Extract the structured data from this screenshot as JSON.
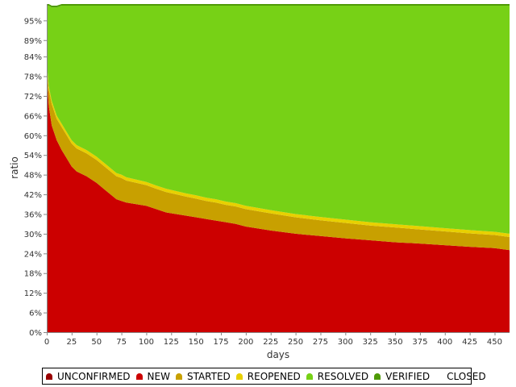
{
  "chart_data": {
    "type": "area",
    "xlabel": "days",
    "ylabel": "ratio",
    "xlim": [
      0,
      465
    ],
    "ylim": [
      0,
      1
    ],
    "x_ticks": [
      0,
      25,
      50,
      75,
      100,
      125,
      150,
      175,
      200,
      225,
      250,
      275,
      300,
      325,
      350,
      375,
      400,
      425,
      450
    ],
    "y_ticks": [
      "0%",
      "6%",
      "12%",
      "18%",
      "24%",
      "30%",
      "36%",
      "42%",
      "48%",
      "54%",
      "60%",
      "66%",
      "72%",
      "78%",
      "84%",
      "89%",
      "95%"
    ],
    "grid": false,
    "legend_position": "bottom",
    "x": [
      0,
      2,
      5,
      10,
      15,
      20,
      25,
      30,
      40,
      50,
      60,
      70,
      75,
      80,
      90,
      100,
      110,
      120,
      130,
      140,
      150,
      160,
      170,
      180,
      190,
      200,
      225,
      250,
      275,
      300,
      325,
      350,
      375,
      400,
      425,
      450,
      465
    ],
    "series": [
      {
        "name": "UNCONFIRMED",
        "color": "#990000",
        "values": [
          0,
          0,
          0,
          0,
          0,
          0,
          0,
          0,
          0,
          0,
          0,
          0,
          0,
          0,
          0,
          0,
          0,
          0,
          0,
          0,
          0,
          0,
          0,
          0,
          0,
          0,
          0,
          0,
          0,
          0,
          0,
          0,
          0,
          0,
          0,
          0,
          0
        ]
      },
      {
        "name": "NEW",
        "color": "#cc0000",
        "values": [
          0.79,
          0.69,
          0.63,
          0.585,
          0.555,
          0.53,
          0.505,
          0.49,
          0.475,
          0.455,
          0.43,
          0.405,
          0.4,
          0.395,
          0.39,
          0.385,
          0.375,
          0.365,
          0.36,
          0.355,
          0.35,
          0.345,
          0.34,
          0.335,
          0.33,
          0.322,
          0.31,
          0.3,
          0.293,
          0.286,
          0.28,
          0.274,
          0.27,
          0.265,
          0.26,
          0.256,
          0.25
        ]
      },
      {
        "name": "STARTED",
        "color": "#c8a000",
        "values": [
          0.02,
          0.05,
          0.065,
          0.065,
          0.07,
          0.07,
          0.07,
          0.07,
          0.07,
          0.07,
          0.07,
          0.07,
          0.07,
          0.067,
          0.065,
          0.063,
          0.062,
          0.062,
          0.06,
          0.058,
          0.057,
          0.055,
          0.055,
          0.053,
          0.053,
          0.053,
          0.052,
          0.05,
          0.048,
          0.047,
          0.045,
          0.045,
          0.043,
          0.042,
          0.041,
          0.04,
          0.04
        ]
      },
      {
        "name": "REOPENED",
        "color": "#e8d000",
        "values": [
          0.01,
          0.01,
          0.01,
          0.01,
          0.01,
          0.01,
          0.01,
          0.01,
          0.01,
          0.01,
          0.01,
          0.01,
          0.01,
          0.01,
          0.01,
          0.01,
          0.01,
          0.01,
          0.01,
          0.01,
          0.01,
          0.01,
          0.01,
          0.01,
          0.01,
          0.01,
          0.01,
          0.01,
          0.01,
          0.01,
          0.01,
          0.01,
          0.01,
          0.01,
          0.01,
          0.01,
          0.01
        ]
      },
      {
        "name": "RESOLVED",
        "color": "#77d116",
        "values": [
          0.175,
          0.245,
          0.285,
          0.33,
          0.36,
          0.385,
          0.41,
          0.425,
          0.44,
          0.46,
          0.485,
          0.51,
          0.515,
          0.523,
          0.53,
          0.537,
          0.548,
          0.558,
          0.565,
          0.572,
          0.578,
          0.585,
          0.59,
          0.597,
          0.602,
          0.61,
          0.623,
          0.635,
          0.644,
          0.652,
          0.66,
          0.666,
          0.672,
          0.678,
          0.684,
          0.689,
          0.695
        ]
      },
      {
        "name": "VERIFIED",
        "color": "#4e9a06",
        "values": [
          0.005,
          0.005,
          0.005,
          0.005,
          0.005,
          0.005,
          0.005,
          0.005,
          0.005,
          0.005,
          0.005,
          0.005,
          0.005,
          0.005,
          0.005,
          0.005,
          0.005,
          0.005,
          0.005,
          0.005,
          0.005,
          0.005,
          0.005,
          0.005,
          0.005,
          0.005,
          0.005,
          0.005,
          0.005,
          0.005,
          0.005,
          0.005,
          0.005,
          0.005,
          0.005,
          0.005,
          0.005
        ]
      },
      {
        "name": "CLOSED",
        "color": "none",
        "values": [
          0,
          0,
          0,
          0,
          0,
          0,
          0,
          0,
          0,
          0,
          0,
          0,
          0,
          0,
          0,
          0,
          0,
          0,
          0,
          0,
          0,
          0,
          0,
          0,
          0,
          0,
          0,
          0,
          0,
          0,
          0,
          0,
          0,
          0,
          0,
          0,
          0
        ]
      }
    ]
  }
}
